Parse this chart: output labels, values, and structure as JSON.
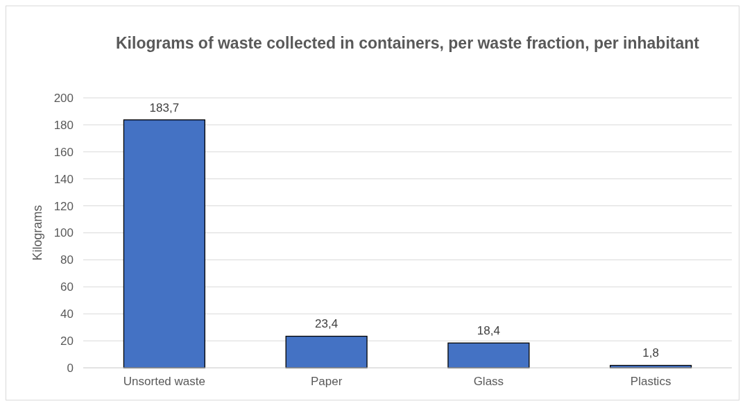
{
  "chart_data": {
    "type": "bar",
    "title": "Kilograms of waste collected in containers, per waste fraction, per inhabitant",
    "ylabel": "Kilograms",
    "categories": [
      "Unsorted waste",
      "Paper",
      "Glass",
      "Plastics"
    ],
    "values": [
      183.7,
      23.4,
      18.4,
      1.8
    ],
    "value_labels": [
      "183,7",
      "23,4",
      "18,4",
      "1,8"
    ],
    "color": "#4472c4",
    "ylim": [
      0,
      200
    ],
    "yticks": [
      0,
      20,
      40,
      60,
      80,
      100,
      120,
      140,
      160,
      180,
      200
    ],
    "grid": "y"
  }
}
